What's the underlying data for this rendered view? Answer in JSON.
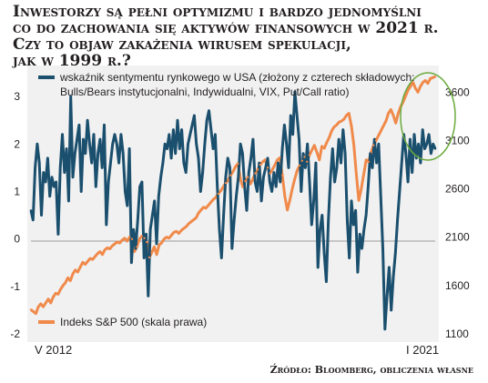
{
  "headline": [
    "Inwestorzy są pełni optymizmu i bardzo jednomyślni",
    "co do zachowania się aktywów finansowych w 2021 r.",
    "Czy to objaw zakażenia wirusem spekulacji,",
    "jak w 1999 r.?"
  ],
  "source": "Źródło: Bloomberg, obliczenia własne",
  "colors": {
    "sentiment": "#1b4f6e",
    "sp500": "#f08a4b",
    "highlight": "#6aaa3c",
    "panel": "#f1f1f1"
  },
  "chart_data": {
    "type": "line",
    "x_labels": [
      "V 2012",
      "I 2021"
    ],
    "y_left": {
      "ticks": [
        "3",
        "2",
        "1",
        "0",
        "-1",
        "-2"
      ],
      "ylim": [
        -2,
        3.5
      ]
    },
    "y_right": {
      "ticks": [
        "3600",
        "3100",
        "2600",
        "2100",
        "1600",
        "1100"
      ],
      "ylim": [
        1100,
        3800
      ]
    },
    "series": [
      {
        "name": "wskaźnik sentymentu rynkowego w USA (złożony z czterech składowych: Bulls/Bears instytucjonalni, Indywidualni, VIX, Put/Call ratio)",
        "legend_line1": "wskaźnik sentymentu rynkowego w USA (złożony z czterech składowych:",
        "legend_line2": "Bulls/Bears instytucjonalni, Indywidualni, VIX, Put/Call ratio)",
        "axis": "left",
        "values": [
          0.6,
          0.4,
          1.5,
          2.0,
          1.6,
          0.5,
          1.4,
          1.2,
          1.7,
          0.9,
          1.3,
          1.1,
          1.2,
          0.1,
          1.5,
          2.2,
          1.4,
          1.9,
          0.8,
          3.0,
          1.3,
          1.8,
          2.1,
          2.4,
          1.0,
          2.1,
          1.8,
          2.5,
          2.0,
          1.6,
          2.2,
          1.1,
          1.8,
          2.1,
          1.5,
          2.4,
          0.3,
          1.2,
          1.6,
          2.0,
          2.2,
          2.0,
          1.6,
          2.2,
          1.8,
          1.0,
          0.7,
          1.9,
          -0.5,
          0.2,
          -0.2,
          0.4,
          1.1,
          1.2,
          -0.4,
          0.1,
          -1.2,
          0.2,
          0.5,
          0.8,
          -0.1,
          0.9,
          1.3,
          1.6,
          2.0,
          1.9,
          2.2,
          1.7,
          2.3,
          1.8,
          2.5,
          1.9,
          2.3,
          1.6,
          1.4,
          2.0,
          2.2,
          2.4,
          2.6,
          2.0,
          1.7,
          1.0,
          1.4,
          2.0,
          2.5,
          2.7,
          2.3,
          1.9,
          2.2,
          1.1,
          0.2,
          -0.4,
          0.5,
          1.3,
          1.7,
          1.5,
          -0.2,
          0.4,
          0.9,
          1.3,
          2.0,
          1.8,
          1.1,
          0.6,
          1.4,
          1.7,
          2.1,
          1.2,
          1.0,
          1.6,
          0.8,
          1.3,
          1.5,
          1.7,
          1.2,
          1.0,
          1.4,
          1.1,
          1.6,
          1.2,
          1.9,
          2.4,
          2.0,
          1.5,
          2.6,
          2.2,
          3.1,
          2.6,
          2.1,
          1.0,
          1.8,
          1.5,
          2.0,
          1.2,
          0.3,
          0.8,
          1.6,
          -0.6,
          0.2,
          0.5,
          -0.3,
          -0.9,
          0.4,
          1.3,
          1.9,
          1.2,
          1.5,
          2.1,
          1.6,
          2.3,
          1.8,
          0.4,
          -0.4,
          0.8,
          0.3,
          0.6,
          -0.7,
          0.1,
          -0.2,
          0.2,
          0.5,
          1.1,
          1.8,
          1.5,
          2.1,
          1.6,
          2.0,
          0.9,
          -0.2,
          -1.9,
          -1.2,
          -0.6,
          -1.5,
          -0.8,
          -0.3,
          0.4,
          1.0,
          1.6,
          2.2,
          1.8,
          1.2,
          2.1,
          1.4,
          2.2,
          1.7,
          2.0,
          1.6,
          2.3,
          1.9,
          2.0,
          2.2,
          1.8,
          2.0,
          1.9
        ]
      },
      {
        "name": "Indeks S&P 500 (skala prawa)",
        "axis": "right",
        "values": [
          1350,
          1330,
          1310,
          1380,
          1410,
          1380,
          1420,
          1460,
          1420,
          1480,
          1520,
          1510,
          1560,
          1600,
          1630,
          1680,
          1650,
          1720,
          1760,
          1740,
          1790,
          1840,
          1820,
          1850,
          1880,
          1870,
          1900,
          1930,
          1950,
          1920,
          1970,
          1990,
          1980,
          2010,
          2030,
          2050,
          2040,
          2070,
          2090,
          2060,
          2100,
          2080,
          1950,
          2000,
          2080,
          2110,
          2090,
          2050,
          1890,
          1940,
          2000,
          1920,
          2020,
          2040,
          2080,
          2100,
          2090,
          2120,
          2150,
          2160,
          2140,
          2170,
          2190,
          2210,
          2240,
          2260,
          2280,
          2300,
          2350,
          2380,
          2410,
          2400,
          2430,
          2460,
          2490,
          2510,
          2550,
          2580,
          2620,
          2660,
          2690,
          2740,
          2780,
          2830,
          2860,
          2700,
          2620,
          2680,
          2720,
          2650,
          2700,
          2760,
          2800,
          2850,
          2880,
          2900,
          2820,
          2760,
          2800,
          2850,
          2900,
          2920,
          2740,
          2520,
          2380,
          2480,
          2600,
          2700,
          2790,
          2840,
          2890,
          2930,
          2880,
          2950,
          3000,
          3050,
          2980,
          2900,
          3040,
          3020,
          3080,
          3130,
          3200,
          3240,
          3260,
          3290,
          3300,
          3320,
          3360,
          3380,
          3250,
          3050,
          2750,
          2480,
          2600,
          2750,
          2900,
          2880,
          2980,
          3050,
          3100,
          3150,
          3200,
          3250,
          3300,
          3380,
          3420,
          3360,
          3280,
          3380,
          3450,
          3500,
          3560,
          3620,
          3660,
          3700,
          3640,
          3600,
          3660,
          3700,
          3720,
          3690,
          3740,
          3750,
          3760
        ]
      }
    ]
  }
}
